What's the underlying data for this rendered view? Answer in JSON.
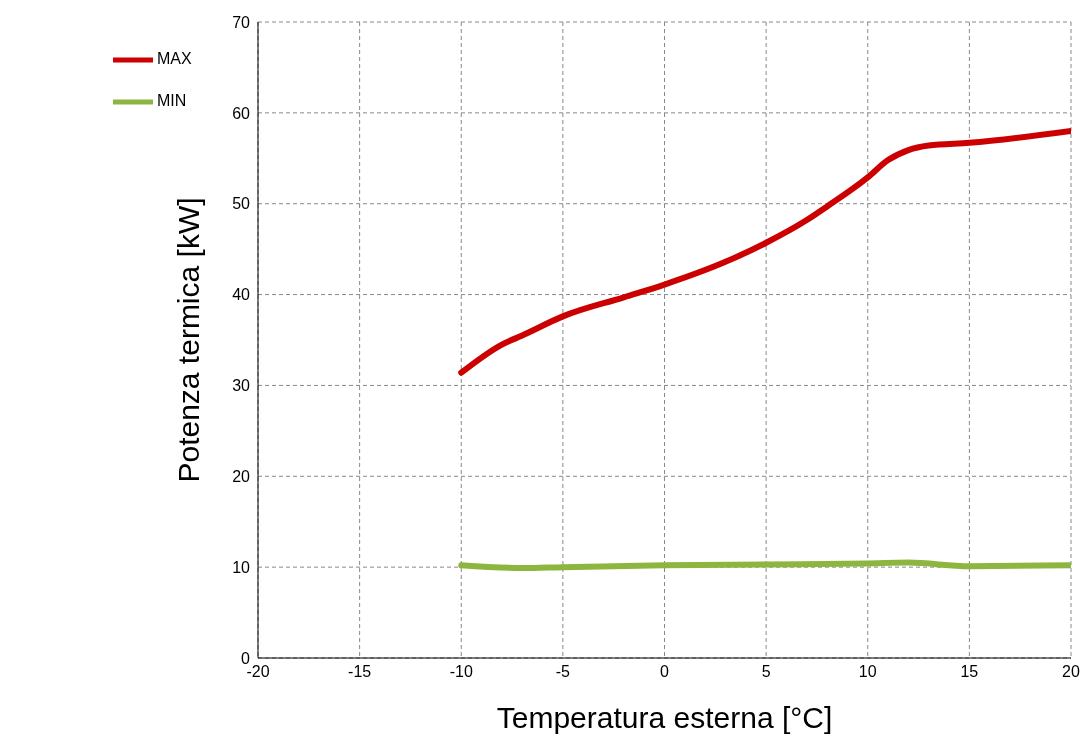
{
  "chart_data": {
    "type": "line",
    "xlabel": "Temperatura esterna [°C]",
    "ylabel": "Potenza termica [kW]",
    "xlim": [
      -20,
      20
    ],
    "xticks": [
      -20,
      -15,
      -10,
      -5,
      0,
      5,
      10,
      15,
      20
    ],
    "ylim": [
      0,
      70
    ],
    "yticks": [
      0,
      10,
      20,
      30,
      40,
      50,
      60,
      70
    ],
    "grid": true,
    "legend": "top left",
    "marker": "none",
    "line_style": "solid",
    "series": [
      {
        "name": "MAX",
        "color": "#cc0000",
        "x": [
          -10,
          -8,
          -7,
          -5,
          -2,
          0,
          3,
          5,
          7,
          8,
          10,
          11,
          12,
          13,
          15,
          20
        ],
        "values": [
          31.4,
          34.5,
          35.5,
          37.6,
          39.7,
          41.1,
          43.6,
          45.7,
          48.2,
          49.7,
          52.9,
          54.8,
          55.9,
          56.4,
          56.7,
          58.0
        ]
      },
      {
        "name": "MIN",
        "color": "#8db640",
        "x": [
          -10,
          -7,
          -5,
          0,
          5,
          10,
          12,
          15,
          20
        ],
        "values": [
          10.2,
          9.9,
          10.0,
          10.2,
          10.3,
          10.4,
          10.5,
          10.1,
          10.2
        ]
      }
    ]
  }
}
